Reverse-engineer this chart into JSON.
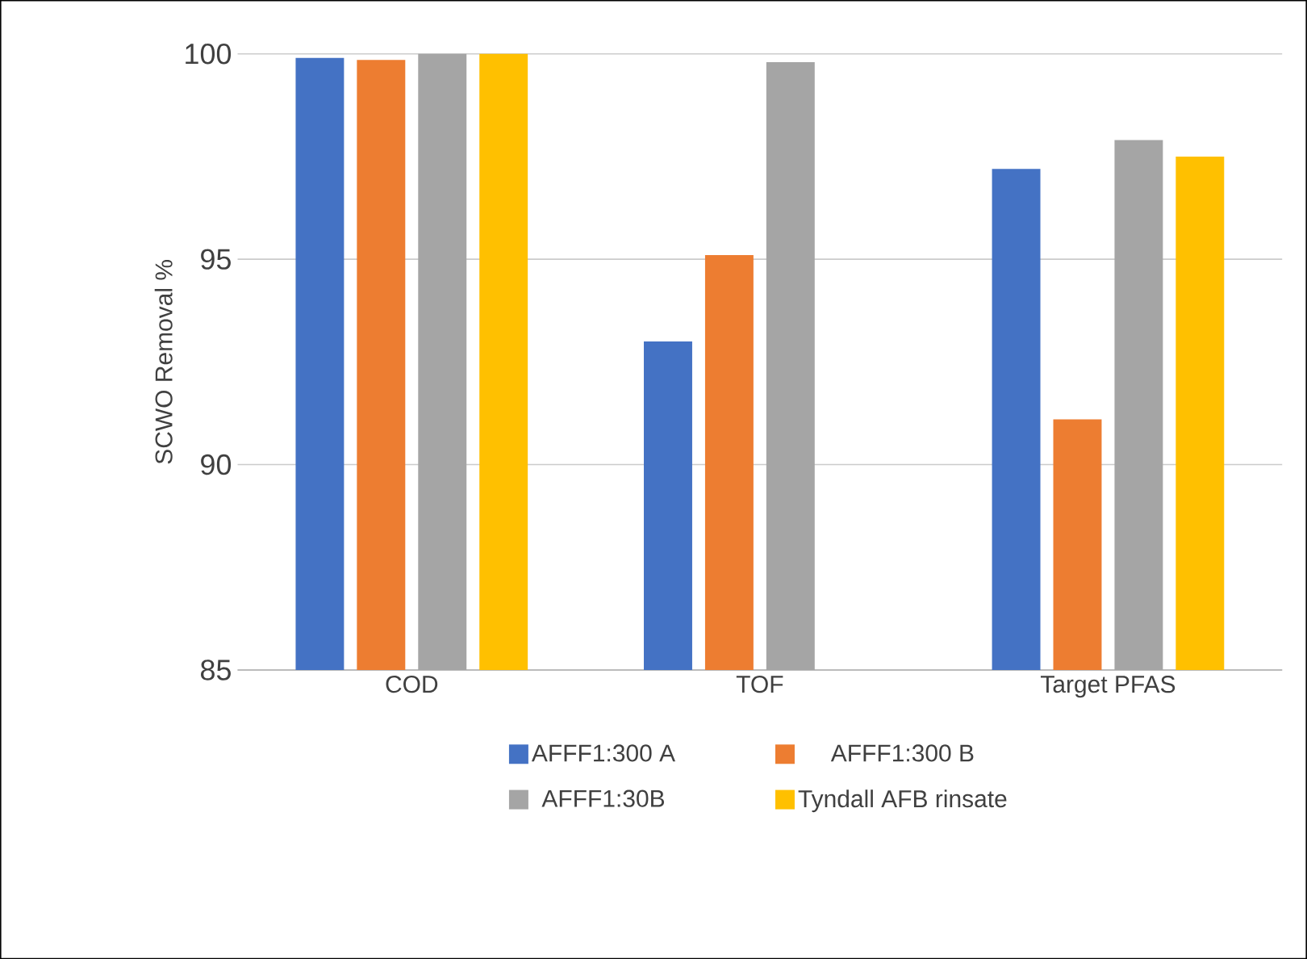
{
  "chart_data": {
    "type": "bar",
    "ylabel": "SCWO Removal %",
    "categories": [
      "COD",
      "TOF",
      "Target PFAS"
    ],
    "series": [
      {
        "name": "AFFF1:300 A",
        "color": "#4472c4",
        "values": [
          99.9,
          93.0,
          97.2
        ]
      },
      {
        "name": "AFFF1:300 B",
        "color": "#ed7d31",
        "values": [
          99.85,
          95.1,
          91.1
        ]
      },
      {
        "name": "AFFF1:30B",
        "color": "#a5a5a5",
        "values": [
          100,
          99.8,
          97.9
        ]
      },
      {
        "name": "Tyndall AFB rinsate",
        "color": "#ffc000",
        "values": [
          100,
          null,
          97.5
        ]
      }
    ],
    "ylim": [
      85,
      100
    ],
    "yticks": [
      85,
      90,
      95,
      100
    ],
    "grid": "y",
    "legend": "bottom"
  }
}
